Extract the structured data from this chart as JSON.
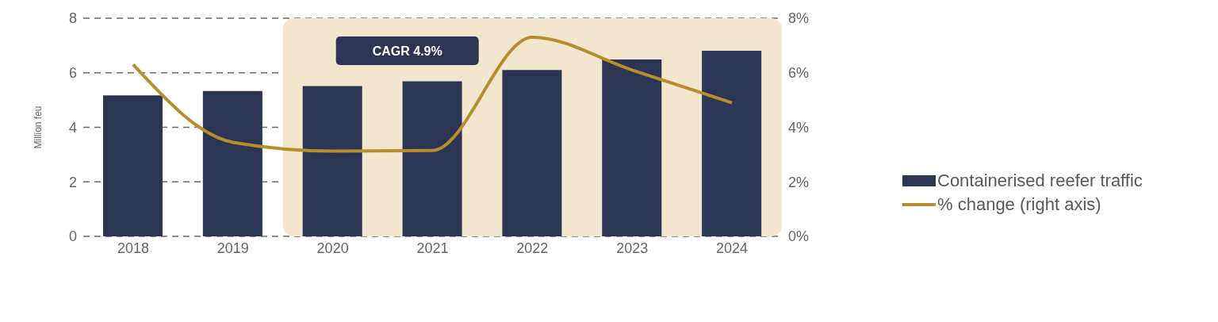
{
  "chart_data": {
    "type": "bar",
    "ylabel": "Million feu",
    "categories": [
      "2018",
      "2019",
      "2020",
      "2021",
      "2022",
      "2023",
      "2024"
    ],
    "series": [
      {
        "name": "Containerised reefer traffic",
        "color": "#2b3554",
        "values": [
          5.17,
          5.33,
          5.51,
          5.69,
          6.1,
          6.49,
          6.81
        ]
      },
      {
        "name": "% change (right axis)",
        "type": "line",
        "axis": "y2",
        "color": "#b78e2e",
        "values": [
          6.3,
          3.45,
          3.13,
          3.15,
          7.3,
          6.1,
          4.9
        ]
      }
    ],
    "ylim": [
      0,
      8
    ],
    "yticks": [
      0,
      2,
      4,
      6,
      8
    ],
    "y2lim": [
      0,
      8
    ],
    "y2ticks": [
      {
        "value": 0,
        "label": "0%"
      },
      {
        "value": 2,
        "label": "2%"
      },
      {
        "value": 4,
        "label": "4%"
      },
      {
        "value": 6,
        "label": "6%"
      },
      {
        "value": 8,
        "label": "8%"
      }
    ],
    "bands": [
      {
        "axis": "x",
        "from": "2020",
        "to": "2024",
        "label": "CAGR 4.9%",
        "color": "#f2e6cf"
      }
    ],
    "grid": "y",
    "legend": "right",
    "marker": "none",
    "line_style": "solid"
  }
}
